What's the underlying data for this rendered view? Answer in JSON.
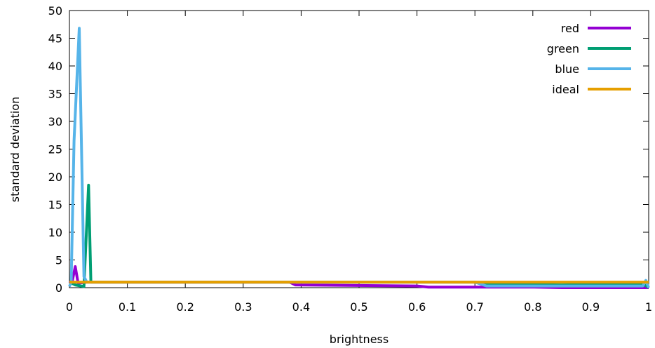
{
  "chart_data": {
    "type": "line",
    "title": "",
    "xlabel": "brightness",
    "ylabel": "standard deviation",
    "xlim": [
      0,
      1
    ],
    "ylim": [
      0,
      50
    ],
    "x_ticks": [
      "0",
      "0.1",
      "0.2",
      "0.3",
      "0.4",
      "0.5",
      "0.6",
      "0.7",
      "0.8",
      "0.9",
      "1"
    ],
    "y_ticks": [
      "0",
      "5",
      "10",
      "15",
      "20",
      "25",
      "30",
      "35",
      "40",
      "45",
      "50"
    ],
    "grid": false,
    "legend_position": "top-right",
    "series": [
      {
        "name": "red",
        "color": "#9400d3",
        "points": [
          [
            0,
            0.8
          ],
          [
            0.005,
            1.2
          ],
          [
            0.01,
            3.8
          ],
          [
            0.015,
            0.8
          ],
          [
            0.03,
            1.0
          ],
          [
            0.38,
            1.0
          ],
          [
            0.39,
            0.5
          ],
          [
            0.6,
            0.3
          ],
          [
            0.62,
            0.1
          ],
          [
            0.8,
            0.1
          ],
          [
            0.85,
            0.0
          ],
          [
            1.0,
            0.0
          ]
        ]
      },
      {
        "name": "green",
        "color": "#009e73",
        "points": [
          [
            0,
            1.0
          ],
          [
            0.01,
            0.5
          ],
          [
            0.025,
            0.2
          ],
          [
            0.033,
            18.5
          ],
          [
            0.037,
            1.0
          ],
          [
            0.05,
            1.0
          ],
          [
            0.7,
            1.0
          ],
          [
            0.72,
            0.6
          ],
          [
            0.85,
            0.5
          ],
          [
            0.99,
            0.7
          ],
          [
            1.0,
            0.0
          ]
        ]
      },
      {
        "name": "blue",
        "color": "#56b4e9",
        "points": [
          [
            0,
            0.2
          ],
          [
            0.003,
            1.0
          ],
          [
            0.008,
            26.5
          ],
          [
            0.017,
            46.8
          ],
          [
            0.025,
            2.0
          ],
          [
            0.03,
            1.0
          ],
          [
            0.7,
            1.0
          ],
          [
            0.72,
            0.3
          ],
          [
            0.99,
            0.3
          ],
          [
            0.995,
            1.3
          ],
          [
            1.0,
            0.0
          ]
        ]
      },
      {
        "name": "ideal",
        "color": "#e69f00",
        "points": [
          [
            0,
            1.0
          ],
          [
            1.0,
            1.0
          ]
        ]
      }
    ]
  }
}
